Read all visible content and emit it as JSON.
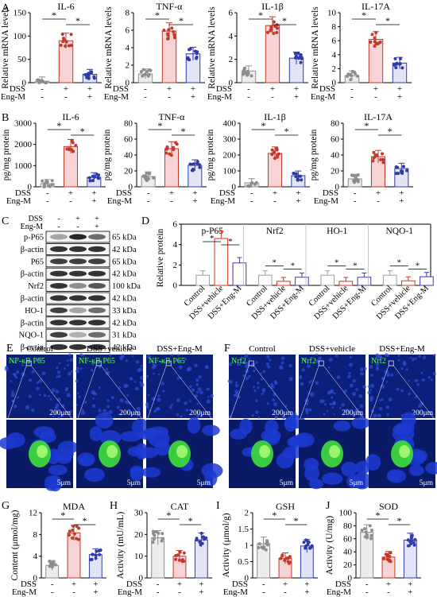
{
  "panel_letters": [
    "A",
    "B",
    "C",
    "D",
    "E",
    "F",
    "G",
    "H",
    "I",
    "J"
  ],
  "row_labels": {
    "dss": "DSS",
    "engm": "Eng-M"
  },
  "group_signs": {
    "dss": [
      "-",
      "+",
      "+"
    ],
    "engm": [
      "-",
      "-",
      "+"
    ]
  },
  "sig_mark": "*",
  "panel_a": {
    "ylabel": "Relative mRNA levels",
    "charts": [
      {
        "title": "IL-6",
        "ylim": [
          0,
          150
        ],
        "ticks": [
          0,
          50,
          100,
          150
        ],
        "values": [
          3,
          90,
          18
        ]
      },
      {
        "title": "TNF-α",
        "ylim": [
          0,
          8
        ],
        "ticks": [
          0,
          2,
          4,
          6,
          8
        ],
        "values": [
          1,
          5.9,
          3.3
        ]
      },
      {
        "title": "IL-1β",
        "ylim": [
          0,
          6
        ],
        "ticks": [
          0,
          2,
          4,
          6
        ],
        "values": [
          1,
          4.9,
          2.1
        ]
      },
      {
        "title": "IL-17A",
        "ylim": [
          0,
          10
        ],
        "ticks": [
          0,
          2,
          4,
          6,
          8,
          10
        ],
        "values": [
          1,
          6.2,
          2.8
        ]
      }
    ]
  },
  "panel_b": {
    "ylabel": "pg/mg protein",
    "charts": [
      {
        "title": "IL-6",
        "ylim": [
          0,
          3000
        ],
        "ticks": [
          0,
          1000,
          2000,
          3000
        ],
        "values": [
          150,
          1900,
          450
        ]
      },
      {
        "title": "TNF-α",
        "ylim": [
          0,
          80
        ],
        "ticks": [
          0,
          20,
          40,
          60,
          80
        ],
        "values": [
          13,
          48,
          27
        ]
      },
      {
        "title": "IL-1β",
        "ylim": [
          0,
          400
        ],
        "ticks": [
          0,
          100,
          200,
          300,
          400
        ],
        "values": [
          25,
          210,
          70
        ]
      },
      {
        "title": "IL-17A",
        "ylim": [
          0,
          80
        ],
        "ticks": [
          0,
          20,
          40,
          60,
          80
        ],
        "values": [
          10,
          38,
          23
        ]
      }
    ]
  },
  "panel_c": {
    "bands": [
      {
        "label": "p-P65",
        "kda": "65 kDa"
      },
      {
        "label": "β-actin",
        "kda": "42 kDa"
      },
      {
        "label": "P65",
        "kda": "65 kDa"
      },
      {
        "label": "β-actin",
        "kda": "42 kDa"
      },
      {
        "label": "Nrf2",
        "kda": "100 kDa"
      },
      {
        "label": "β-actin",
        "kda": "42 kDa"
      },
      {
        "label": "HO-1",
        "kda": "33 kDa"
      },
      {
        "label": "β-actin",
        "kda": "42 kDa"
      },
      {
        "label": "NQO-1",
        "kda": "31 kDa"
      },
      {
        "label": "β-actin",
        "kda": "42 kDa"
      }
    ]
  },
  "chart_data": [
    {
      "type": "bar",
      "panel": "D",
      "ylabel": "Relative protein",
      "ylim": [
        0,
        6
      ],
      "ticks": [
        0,
        2,
        4,
        6
      ],
      "categories": [
        "Control",
        "DSS+vehicle",
        "DSS+Eng-M"
      ],
      "series": [
        {
          "name": "p-P65",
          "values": [
            1,
            4.6,
            2.2
          ]
        },
        {
          "name": "Nrf2",
          "values": [
            1,
            0.4,
            0.8
          ]
        },
        {
          "name": "HO-1",
          "values": [
            1,
            0.4,
            0.8
          ]
        },
        {
          "name": "NQO-1",
          "values": [
            1,
            0.45,
            0.85
          ]
        }
      ],
      "colors": [
        "#9e9e9e",
        "#d7301f",
        "#3b3bb3"
      ]
    }
  ],
  "panel_e": {
    "columns": [
      "Control",
      "DSS+vehicle",
      "DSS+Eng-M"
    ],
    "stain": "NF-κB P65",
    "scale_top": "200μm",
    "scale_bottom": "5μm"
  },
  "panel_f": {
    "columns": [
      "Control",
      "DSS+vehicle",
      "DSS+Eng-M"
    ],
    "stain": "Nrf2",
    "scale_top": "200μm",
    "scale_bottom": "5μm"
  },
  "panel_gj": [
    {
      "letter": "G",
      "title": "MDA",
      "ylabel": "Content (μmol/mg)",
      "ylim": [
        0,
        12
      ],
      "ticks": [
        0,
        4,
        8,
        12
      ],
      "values": [
        2.3,
        8.3,
        4.3
      ]
    },
    {
      "letter": "H",
      "title": "CAT",
      "ylabel": "Activity (mU/mL)",
      "ylim": [
        0,
        30
      ],
      "ticks": [
        0,
        10,
        20,
        30
      ],
      "values": [
        18.5,
        10,
        17.5
      ]
    },
    {
      "letter": "I",
      "title": "GSH",
      "ylabel": "Activity (μmol/g)",
      "ylim": [
        0,
        2.0
      ],
      "ticks": [
        0.0,
        0.5,
        1.0,
        1.5,
        2.0
      ],
      "values": [
        1.05,
        0.6,
        0.98
      ]
    },
    {
      "letter": "J",
      "title": "SOD",
      "ylabel": "Activity (U/mg)",
      "ylim": [
        0,
        100
      ],
      "ticks": [
        0,
        20,
        40,
        60,
        80,
        100
      ],
      "values": [
        70,
        32,
        58
      ]
    }
  ],
  "bar_colors": {
    "control": "#8c8c8c",
    "vehicle": "#c0392b",
    "engm": "#2f3aa8"
  },
  "fills": {
    "control": "#ececec",
    "vehicle": "#f7d3d6",
    "engm": "#e3e5f6"
  }
}
